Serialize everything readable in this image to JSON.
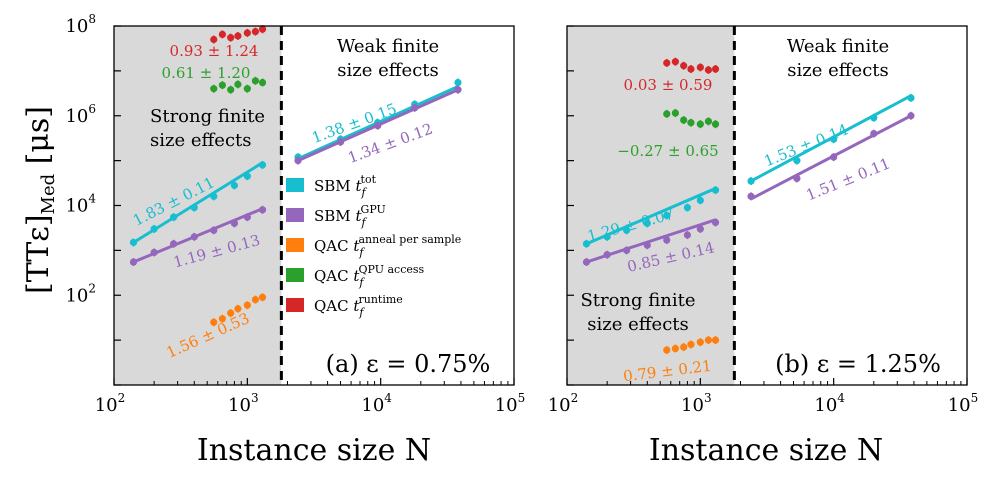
{
  "figure": {
    "ylabel_main": "[TTε]",
    "ylabel_sub": "Med",
    "ylabel_unit": "[μs]",
    "xlabel": "Instance size N"
  },
  "legend": [
    {
      "key": "sbm_tot",
      "label": "SBM",
      "sym": "t",
      "sub": "f",
      "sup": "tot",
      "color": "#17becf"
    },
    {
      "key": "sbm_gpu",
      "label": "SBM",
      "sym": "t",
      "sub": "f",
      "sup": "GPU",
      "color": "#9467bd"
    },
    {
      "key": "qac_anneal",
      "label": "QAC",
      "sym": "t",
      "sub": "f",
      "sup": "anneal per sample",
      "color": "#ff7f0e"
    },
    {
      "key": "qac_qpu",
      "label": "QAC",
      "sym": "t",
      "sub": "f",
      "sup": "QPU access",
      "color": "#2ca02c"
    },
    {
      "key": "qac_runtime",
      "label": "QAC",
      "sym": "t",
      "sub": "f",
      "sup": "runtime",
      "color": "#d62728"
    }
  ],
  "chart_data": [
    {
      "type": "scatter",
      "panel": "(a) ε = 0.75%",
      "xscale": "log",
      "yscale": "log",
      "xlim": [
        100,
        100000
      ],
      "ylim": [
        1,
        100000000
      ],
      "xticks": [
        "10",
        "10",
        "10",
        "10"
      ],
      "xtick_exps": [
        "2",
        "3",
        "4",
        "5"
      ],
      "yticks": [
        "10",
        "10",
        "10",
        "10"
      ],
      "ytick_exps": [
        "2",
        "4",
        "6",
        "8"
      ],
      "threshold_N": 1800,
      "region_strong": [
        "Strong finite",
        "size effects"
      ],
      "region_weak": [
        "Weak finite",
        "size effects"
      ],
      "series": [
        {
          "key": "sbm_tot",
          "x": [
            140,
            200,
            280,
            400,
            560,
            800,
            1000,
            1300
          ],
          "y": [
            1500,
            3000,
            5500,
            9000,
            16000,
            28000,
            45000,
            80000
          ],
          "fit": [
            [
              140,
              1500
            ],
            [
              1300,
              90000
            ]
          ]
        },
        {
          "key": "sbm_tot",
          "x": [
            2400,
            5000,
            9500,
            18000,
            38000
          ],
          "y": [
            120000,
            300000,
            700000,
            1800000,
            5500000
          ],
          "fit": [
            [
              2400,
              110000
            ],
            [
              38000,
              4500000
            ]
          ]
        },
        {
          "key": "sbm_gpu",
          "x": [
            140,
            200,
            280,
            400,
            560,
            800,
            1000,
            1300
          ],
          "y": [
            550,
            900,
            1400,
            2000,
            2800,
            4000,
            5500,
            8000
          ],
          "fit": [
            [
              140,
              550
            ],
            [
              1300,
              8500
            ]
          ]
        },
        {
          "key": "sbm_gpu",
          "x": [
            2400,
            5000,
            9500,
            18000,
            38000
          ],
          "y": [
            100000,
            260000,
            600000,
            1500000,
            3800000
          ],
          "fit": [
            [
              2400,
              100000
            ],
            [
              38000,
              3800000
            ]
          ]
        },
        {
          "key": "qac_anneal",
          "x": [
            560,
            650,
            750,
            850,
            1000,
            1150,
            1300
          ],
          "y": [
            25,
            30,
            40,
            50,
            60,
            80,
            90
          ]
        },
        {
          "key": "qac_qpu",
          "x": [
            560,
            650,
            750,
            850,
            1000,
            1150,
            1300
          ],
          "y": [
            4000000,
            4800000,
            3800000,
            5000000,
            4000000,
            6000000,
            5500000
          ]
        },
        {
          "key": "qac_runtime",
          "x": [
            560,
            650,
            750,
            850,
            1000,
            1150,
            1300
          ],
          "y": [
            50000000,
            65000000,
            55000000,
            60000000,
            70000000,
            75000000,
            85000000
          ]
        }
      ],
      "annotations": [
        {
          "key": "qac_runtime",
          "text": "0.93 ± 1.24"
        },
        {
          "key": "qac_qpu",
          "text": "0.61 ± 1.20"
        },
        {
          "key": "sbm_tot",
          "text": "1.83 ± 0.11"
        },
        {
          "key": "sbm_gpu",
          "text": "1.19 ± 0.13"
        },
        {
          "key": "qac_anneal",
          "text": "1.56 ± 0.53"
        },
        {
          "key": "sbm_tot",
          "text": "1.38 ± 0.15"
        },
        {
          "key": "sbm_gpu",
          "text": "1.34 ± 0.12"
        }
      ]
    },
    {
      "type": "scatter",
      "panel": "(b) ε = 1.25%",
      "xscale": "log",
      "yscale": "log",
      "xlim": [
        100,
        100000
      ],
      "ylim": [
        1,
        100000000
      ],
      "xticks": [
        "10",
        "10",
        "10",
        "10"
      ],
      "xtick_exps": [
        "2",
        "3",
        "4",
        "5"
      ],
      "threshold_N": 1800,
      "region_strong": [
        "Strong finite",
        "size effects"
      ],
      "region_weak": [
        "Weak finite",
        "size effects"
      ],
      "series": [
        {
          "key": "sbm_tot",
          "x": [
            140,
            200,
            280,
            400,
            560,
            800,
            1000,
            1300
          ],
          "y": [
            1400,
            2000,
            2800,
            4000,
            6000,
            9000,
            13000,
            22000
          ],
          "fit": [
            [
              140,
              1400
            ],
            [
              1300,
              24000
            ]
          ]
        },
        {
          "key": "sbm_tot",
          "x": [
            2400,
            5300,
            10000,
            20000,
            38000
          ],
          "y": [
            35000,
            100000,
            300000,
            900000,
            2500000
          ],
          "fit": [
            [
              2400,
              35000
            ],
            [
              38000,
              2800000
            ]
          ]
        },
        {
          "key": "sbm_gpu",
          "x": [
            140,
            200,
            280,
            400,
            560,
            800,
            1000,
            1300
          ],
          "y": [
            550,
            800,
            1000,
            1300,
            1700,
            2200,
            3000,
            4200
          ],
          "fit": [
            [
              140,
              550
            ],
            [
              1300,
              4800
            ]
          ]
        },
        {
          "key": "sbm_gpu",
          "x": [
            2400,
            5300,
            10000,
            20000,
            38000
          ],
          "y": [
            16000,
            40000,
            120000,
            400000,
            1000000
          ],
          "fit": [
            [
              2400,
              14000
            ],
            [
              38000,
              1000000
            ]
          ]
        },
        {
          "key": "qac_anneal",
          "x": [
            560,
            650,
            750,
            850,
            1000,
            1150,
            1300
          ],
          "y": [
            6,
            6.5,
            7,
            8,
            9,
            10,
            10
          ]
        },
        {
          "key": "qac_qpu",
          "x": [
            560,
            650,
            750,
            850,
            1000,
            1150,
            1300
          ],
          "y": [
            1100000,
            1150000,
            800000,
            700000,
            650000,
            750000,
            650000
          ]
        },
        {
          "key": "qac_runtime",
          "x": [
            560,
            650,
            750,
            850,
            1000,
            1150,
            1300
          ],
          "y": [
            15000000,
            16000000,
            13000000,
            11000000,
            12000000,
            10500000,
            11000000
          ]
        }
      ],
      "annotations": [
        {
          "key": "qac_runtime",
          "text": "0.03 ± 0.59"
        },
        {
          "key": "qac_qpu",
          "text": "−0.27 ± 0.65"
        },
        {
          "key": "sbm_tot",
          "text": "1.29 ± 0.07"
        },
        {
          "key": "sbm_gpu",
          "text": "0.85 ± 0.14"
        },
        {
          "key": "qac_anneal",
          "text": "0.79 ± 0.21"
        },
        {
          "key": "sbm_tot",
          "text": "1.53 ± 0.14"
        },
        {
          "key": "sbm_gpu",
          "text": "1.51 ± 0.11"
        }
      ]
    }
  ]
}
